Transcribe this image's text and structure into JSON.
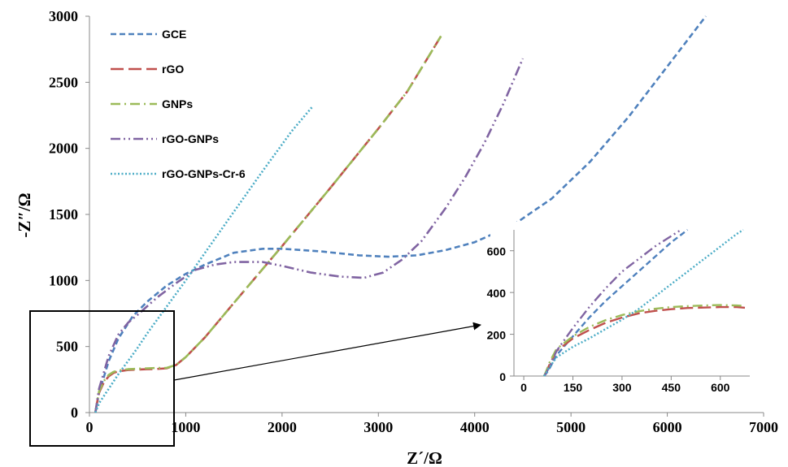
{
  "chart_data": [
    {
      "type": "line",
      "title": "",
      "xlabel": "Z´/Ω",
      "ylabel": "-Z″/Ω",
      "xlim": [
        0,
        7000
      ],
      "ylim": [
        0,
        3000
      ],
      "x_ticks": [
        "0",
        "1000",
        "2000",
        "3000",
        "4000",
        "5000",
        "6000",
        "7000"
      ],
      "y_ticks": [
        "0",
        "500",
        "1000",
        "1500",
        "2000",
        "2500",
        "3000"
      ],
      "grid": false,
      "legend_position": "top-left",
      "series": [
        {
          "name": "GCE",
          "color": "#4f81bd",
          "dash": "short-dash",
          "x": [
            62,
            100,
            200,
            300,
            450,
            600,
            800,
            1000,
            1200,
            1500,
            1800,
            2000,
            2400,
            2800,
            3100,
            3400,
            3700,
            4000,
            4400,
            4800,
            5200,
            5600,
            6000,
            6400
          ],
          "y": [
            0,
            150,
            390,
            560,
            730,
            840,
            960,
            1050,
            1120,
            1210,
            1240,
            1240,
            1220,
            1190,
            1180,
            1190,
            1230,
            1290,
            1420,
            1620,
            1900,
            2240,
            2620,
            3000
          ]
        },
        {
          "name": "rGO",
          "color": "#c0504d",
          "dash": "long-dash",
          "x": [
            62,
            80,
            100,
            150,
            200,
            250,
            300,
            400,
            500,
            600,
            700,
            800,
            900,
            1000,
            1200,
            1500,
            2000,
            2500,
            3000,
            3300,
            3650
          ],
          "y": [
            0,
            80,
            150,
            230,
            275,
            300,
            312,
            322,
            326,
            328,
            330,
            335,
            360,
            420,
            570,
            830,
            1260,
            1700,
            2150,
            2430,
            2850
          ]
        },
        {
          "name": "GNPs",
          "color": "#9bbb59",
          "dash": "dash-dot",
          "x": [
            62,
            80,
            100,
            150,
            200,
            250,
            300,
            400,
            500,
            600,
            700,
            800,
            900,
            1000,
            1200,
            1500,
            2000,
            2500,
            3000,
            3300,
            3650
          ],
          "y": [
            0,
            85,
            160,
            240,
            285,
            308,
            318,
            328,
            332,
            335,
            338,
            338,
            360,
            420,
            570,
            830,
            1260,
            1700,
            2150,
            2430,
            2850
          ]
        },
        {
          "name": "rGO-GNPs",
          "color": "#8064a2",
          "dash": "dash-dot-dot",
          "x": [
            62,
            100,
            200,
            300,
            400,
            500,
            700,
            900,
            1100,
            1300,
            1500,
            1800,
            2000,
            2300,
            2600,
            2850,
            3050,
            3250,
            3450,
            3700,
            3900,
            4100,
            4300,
            4500
          ],
          "y": [
            0,
            180,
            430,
            590,
            680,
            740,
            870,
            980,
            1080,
            1120,
            1140,
            1140,
            1110,
            1060,
            1030,
            1020,
            1060,
            1160,
            1300,
            1550,
            1780,
            2040,
            2340,
            2680
          ]
        },
        {
          "name": "rGO-GNPs-Cr-6",
          "color": "#4bacc6",
          "dash": "dotted",
          "x": [
            62,
            100,
            200,
            300,
            400,
            500,
            600,
            800,
            1000,
            1200,
            1500,
            1800,
            2100,
            2320
          ],
          "y": [
            0,
            70,
            180,
            290,
            390,
            490,
            600,
            800,
            1000,
            1210,
            1520,
            1830,
            2130,
            2320
          ]
        }
      ]
    },
    {
      "type": "line",
      "title": "",
      "xlim": [
        -30,
        690
      ],
      "ylim": [
        0,
        700
      ],
      "x_ticks": [
        "0",
        "150",
        "300",
        "450",
        "600"
      ],
      "y_ticks": [
        "0",
        "200",
        "400",
        "600"
      ],
      "grid": false,
      "series": [
        {
          "color": "#4f81bd",
          "dash": "short-dash",
          "x": [
            62,
            70,
            80,
            100,
            150,
            200,
            250,
            300,
            350,
            400,
            450,
            500
          ],
          "y": [
            0,
            15,
            40,
            100,
            190,
            280,
            360,
            430,
            500,
            570,
            640,
            700
          ]
        },
        {
          "color": "#c0504d",
          "dash": "long-dash",
          "x": [
            62,
            70,
            80,
            100,
            150,
            200,
            250,
            300,
            350,
            400,
            450,
            500,
            550,
            600,
            650,
            675
          ],
          "y": [
            0,
            25,
            60,
            120,
            180,
            220,
            255,
            280,
            300,
            312,
            320,
            326,
            328,
            330,
            330,
            327
          ]
        },
        {
          "color": "#9bbb59",
          "dash": "dash-dot",
          "x": [
            62,
            70,
            80,
            100,
            150,
            200,
            250,
            300,
            350,
            400,
            450,
            500,
            550,
            600,
            650,
            675
          ],
          "y": [
            0,
            30,
            70,
            130,
            190,
            235,
            268,
            292,
            310,
            322,
            330,
            335,
            338,
            340,
            338,
            336
          ]
        },
        {
          "color": "#8064a2",
          "dash": "dash-dot-dot",
          "x": [
            62,
            70,
            80,
            100,
            150,
            200,
            250,
            300,
            350,
            400,
            450,
            480
          ],
          "y": [
            0,
            20,
            50,
            120,
            230,
            330,
            420,
            500,
            560,
            620,
            670,
            700
          ]
        },
        {
          "color": "#4bacc6",
          "dash": "dotted",
          "x": [
            62,
            70,
            80,
            100,
            150,
            200,
            250,
            300,
            350,
            400,
            450,
            500,
            550,
            600,
            650,
            670
          ],
          "y": [
            0,
            20,
            45,
            90,
            140,
            180,
            225,
            270,
            320,
            380,
            440,
            500,
            560,
            620,
            680,
            700
          ]
        }
      ]
    }
  ]
}
